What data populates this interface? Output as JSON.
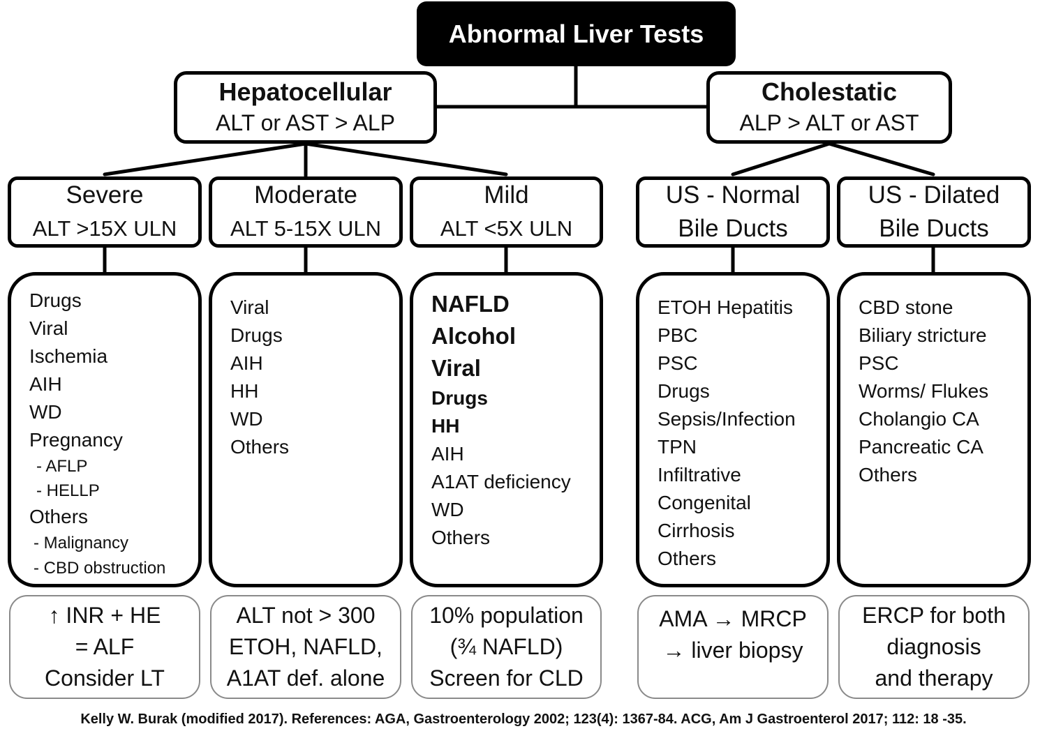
{
  "title": "Abnormal Liver Tests",
  "hepatocellular": {
    "title": "Hepatocellular",
    "criteria": "ALT or AST > ALP",
    "severe": {
      "title": "Severe",
      "criteria": "ALT >15X ULN",
      "items": [
        "Drugs",
        "Viral",
        "Ischemia",
        "AIH",
        "WD",
        "Pregnancy",
        "- AFLP",
        "- HELLP",
        "Others",
        "- Malignancy",
        "- CBD obstruction"
      ],
      "note": [
        "↑ INR + HE",
        "= ALF",
        "Consider LT"
      ]
    },
    "moderate": {
      "title": "Moderate",
      "criteria": "ALT 5-15X ULN",
      "items": [
        "Viral",
        "Drugs",
        "AIH",
        "HH",
        "WD",
        "Others"
      ],
      "note": [
        "ALT not > 300",
        "ETOH, NAFLD,",
        "A1AT def. alone"
      ]
    },
    "mild": {
      "title": "Mild",
      "criteria": "ALT <5X ULN",
      "items": [
        "NAFLD",
        "Alcohol",
        "Viral",
        "Drugs",
        "HH",
        "AIH",
        "A1AT deficiency",
        "WD",
        "Others"
      ],
      "note": [
        "10% population",
        "(¾ NAFLD)",
        "Screen for CLD"
      ]
    }
  },
  "cholestatic": {
    "title": "Cholestatic",
    "criteria": "ALP > ALT or AST",
    "normal": {
      "title": [
        "US - Normal",
        "Bile Ducts"
      ],
      "items": [
        "ETOH Hepatitis",
        "PBC",
        "PSC",
        "Drugs",
        "Sepsis/Infection",
        "TPN",
        "Infiltrative",
        "Congenital",
        "Cirrhosis",
        "Others"
      ],
      "note": [
        "AMA → MRCP",
        "→ liver biopsy"
      ]
    },
    "dilated": {
      "title": [
        "US - Dilated",
        "Bile Ducts"
      ],
      "items": [
        "CBD stone",
        "Biliary stricture",
        "PSC",
        "Worms/ Flukes",
        "Cholangio CA",
        "Pancreatic CA",
        "Others"
      ],
      "note": [
        "ERCP for both",
        "diagnosis",
        "and therapy"
      ]
    }
  },
  "footer": "Kelly W. Burak (modified 2017).  References: AGA, Gastroenterology 2002; 123(4): 1367-84. ACG, Am J Gastroenterol 2017; 112: 18 -35."
}
